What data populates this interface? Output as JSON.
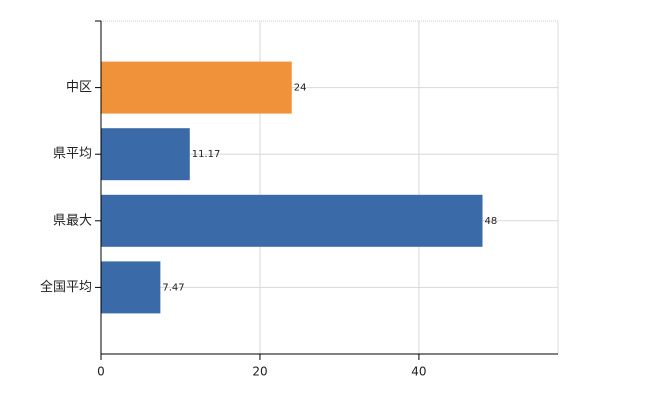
{
  "chart_data": {
    "type": "hbar",
    "categories": [
      "中区",
      "県平均",
      "県最大",
      "全国平均"
    ],
    "values": [
      24,
      11.17,
      48,
      7.47
    ],
    "colors": [
      "#f0923a",
      "#3a6aa8",
      "#3a6aa8",
      "#3a6aa8"
    ],
    "xlim": [
      0,
      57.5
    ],
    "xticks": [
      0,
      20,
      40
    ],
    "grid": true
  }
}
